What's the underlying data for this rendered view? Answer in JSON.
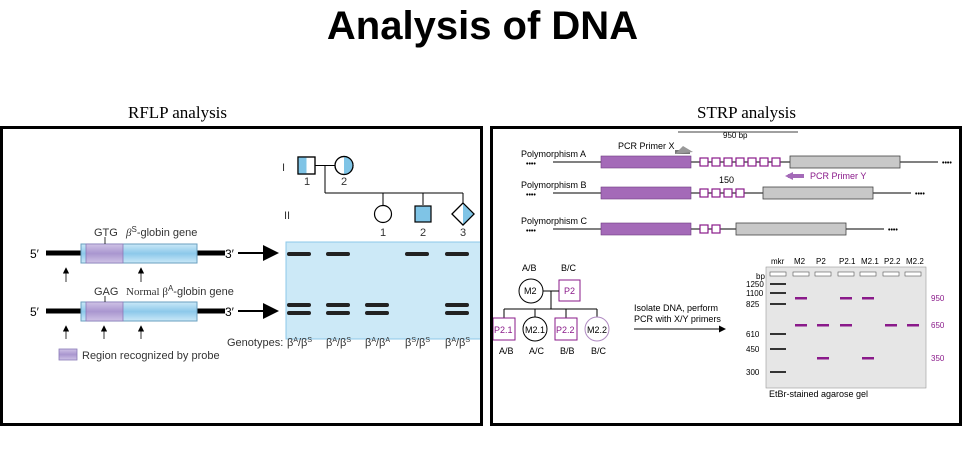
{
  "title": "Analysis of DNA",
  "rflp": {
    "title": "RFLP analysis",
    "pedigree": {
      "gen1": "I",
      "gen2": "II",
      "ids_gen1": [
        "1",
        "2"
      ],
      "ids_gen2": [
        "1",
        "2",
        "3"
      ]
    },
    "alleles": [
      {
        "codon": "GTG",
        "gene_prefix": "β",
        "gene_sup": "S",
        "gene_suffix": "-globin gene",
        "five": "5′",
        "three": "3′"
      },
      {
        "codon": "GAG",
        "gene_prefix": "Normal β",
        "gene_sup": "A",
        "gene_suffix": "-globin gene",
        "five": "5′",
        "three": "3′"
      }
    ],
    "legend": "Region recognized by probe",
    "genotypes_label": "Genotypes:",
    "genotypes": [
      {
        "a": "A",
        "b": "S"
      },
      {
        "a": "A",
        "b": "S"
      },
      {
        "a": "A",
        "b": "A"
      },
      {
        "a": "S",
        "b": "S"
      },
      {
        "a": "A",
        "b": "S"
      }
    ],
    "bands_upper": [
      1,
      1,
      0,
      1,
      1
    ],
    "bands_lower": [
      1,
      1,
      1,
      0,
      1
    ]
  },
  "strp": {
    "title": "STRP analysis",
    "size_950": "950 bp",
    "primer_x": "PCR Primer X",
    "primer_y": "PCR Primer Y",
    "label_150": "150",
    "polymorphisms": [
      {
        "name": "Polymorphism A",
        "repeats": 7
      },
      {
        "name": "Polymorphism B",
        "repeats": 4
      },
      {
        "name": "Polymorphism C",
        "repeats": 2
      }
    ],
    "pedigree": {
      "m2_top": "A/B",
      "p2_top": "B/C",
      "m2": "M2",
      "p2": "P2",
      "children": [
        {
          "id": "P2.1",
          "geno": "A/B"
        },
        {
          "id": "M2.1",
          "geno": "A/C"
        },
        {
          "id": "P2.2",
          "geno": "B/B"
        },
        {
          "id": "M2.2",
          "geno": "B/C"
        }
      ]
    },
    "arrow_text_1": "Isolate DNA, perform",
    "arrow_text_2": "PCR with X/Y primers",
    "gel": {
      "lanes": [
        "mkr",
        "M2",
        "P2",
        "P2.1",
        "M2.1",
        "P2.2",
        "M2.2"
      ],
      "bp_label": "bp",
      "markers": [
        "1250",
        "1100",
        "825",
        "610",
        "450",
        "300"
      ],
      "band_sizes": [
        "950",
        "650",
        "350"
      ],
      "caption": "EtBr-stained agarose gel",
      "band_color": "#8a1a8a"
    }
  },
  "colors": {
    "gel_blue": "#cce9f7",
    "probe_purple": "#b8a7d6",
    "strp_purple": "#a46ab8",
    "affected_blue": "#7fc4e6"
  }
}
